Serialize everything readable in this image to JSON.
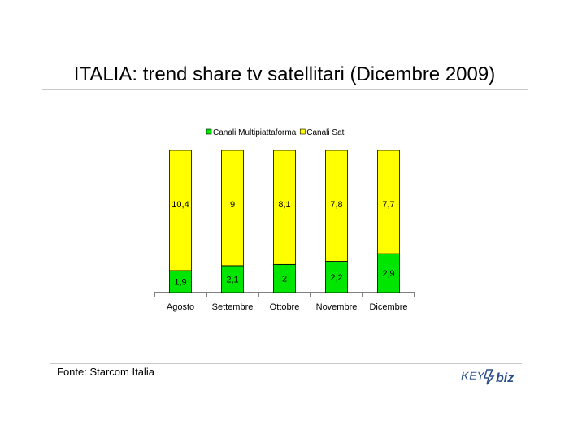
{
  "page": {
    "title": "ITALIA: trend share tv satellitari (Dicembre 2009)",
    "source": "Fonte: Starcom Italia",
    "logo": {
      "left": "KEY",
      "right": "biz"
    }
  },
  "chart_data": {
    "type": "bar",
    "stacked": true,
    "categories": [
      "Agosto",
      "Settembre",
      "Ottobre",
      "Novembre",
      "Dicembre"
    ],
    "series": [
      {
        "name": "Canali Multipiattaforma",
        "color": "#00e600",
        "values": [
          1.9,
          2.1,
          2.0,
          2.2,
          2.9
        ],
        "labels": [
          "1,9",
          "2,1",
          "2",
          "2,2",
          "2,9"
        ]
      },
      {
        "name": "Canali Sat",
        "color": "#ffff00",
        "values": [
          10.4,
          9.0,
          8.1,
          7.8,
          7.7
        ],
        "labels": [
          "10,4",
          "9",
          "8,1",
          "7,8",
          "7,7"
        ]
      }
    ],
    "percent_stacked": true,
    "legend": "top",
    "grid": false
  },
  "colors": {
    "rule": "#c8c8c8",
    "bar_outline": "#000000",
    "logo_blue": "#2a4f8a"
  }
}
